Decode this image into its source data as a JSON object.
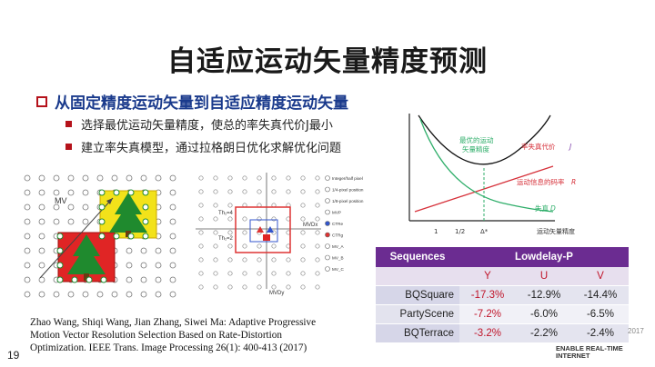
{
  "title": "自适应运动矢量精度预测",
  "bullet_main": "从固定精度运动矢量到自适应精度运动矢量",
  "bullets": [
    "选择最优运动矢量精度，使总的率失真代价J最小",
    "建立率失真模型，通过拉格朗日优化求解优化问题"
  ],
  "figure_left": {
    "mv_label": "MV"
  },
  "figure_mid": {
    "th1": "Th₁=4",
    "th2": "Th₁=2",
    "mvdx": "MVDx",
    "mvdy": "MVDy",
    "legend": [
      "Integer/half pixel position",
      "1/4-pixel position",
      "1/8-pixel position",
      "MVP",
      "CTRe",
      "CTRg",
      "MV_A",
      "MV_B",
      "MV_C"
    ]
  },
  "rd_chart": {
    "labels": {
      "optimal": "最优的运动\n矢量精度",
      "j": "率失真代价",
      "j_sym": "J",
      "r": "运动信息的码率",
      "r_sym": "R",
      "d": "失真",
      "d_sym": "D",
      "xaxis": "运动矢量精度",
      "ticks": [
        "1",
        "1/2",
        "Δ*"
      ]
    },
    "colors": {
      "j": "#111111",
      "r": "#d6313a",
      "d": "#2fae6a",
      "dash": "#2fae6a"
    }
  },
  "table": {
    "header": [
      "Sequences",
      "Lowdelay-P"
    ],
    "subheader": [
      "Y",
      "U",
      "V"
    ],
    "rows": [
      {
        "name": "BQSquare",
        "y": "-17.3%",
        "u": "-12.9%",
        "v": "-14.4%"
      },
      {
        "name": "PartyScene",
        "y": "-7.2%",
        "u": "-6.0%",
        "v": "-6.5%"
      },
      {
        "name": "BQTerrace",
        "y": "-3.2%",
        "u": "-2.2%",
        "v": "-2.4%"
      }
    ]
  },
  "citation": "Zhao Wang, Shiqi Wang, Jian Zhang, Siwei Ma: Adaptive Progressive Motion Vector Resolution Selection Based on Rate-Distortion Optimization. IEEE Trans. Image Processing 26(1): 400-413 (2017)",
  "page_number": "19",
  "watermark_year": "2017",
  "watermark": "ENABLE REAL-TIME\nINTERNET"
}
